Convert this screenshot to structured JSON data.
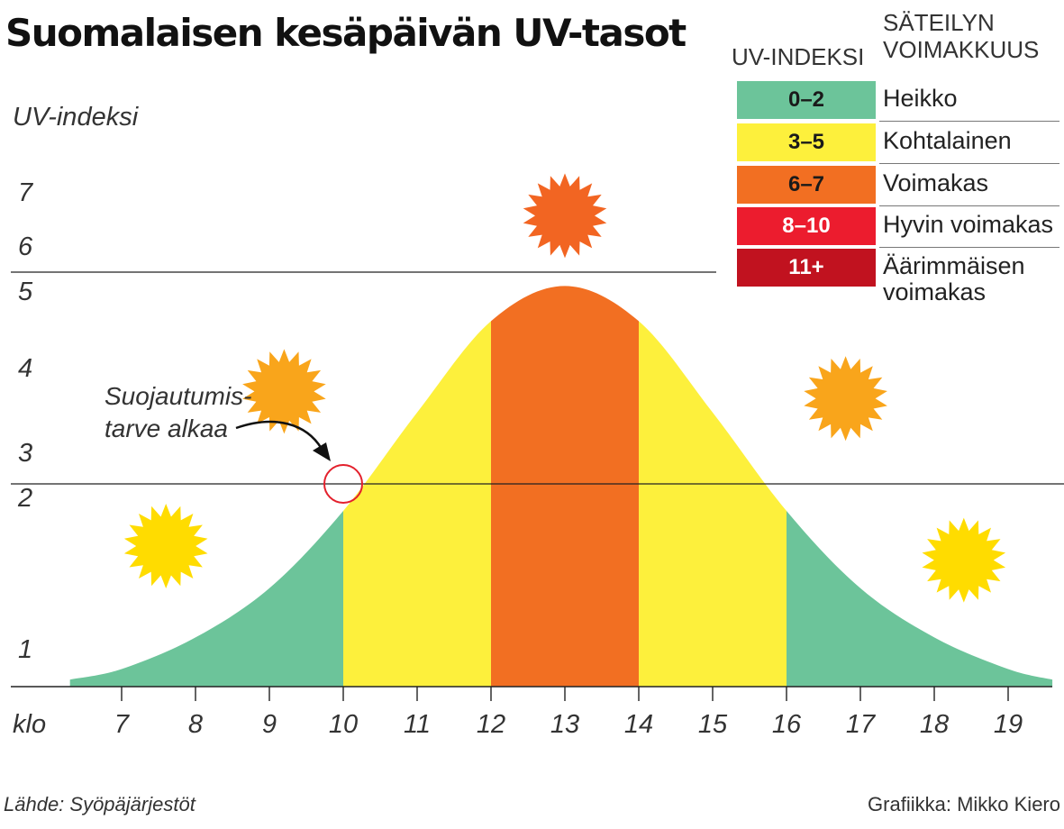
{
  "title": "Suomalaisen kesäpäivän UV-tasot",
  "chart_data": {
    "type": "area",
    "ylabel": "UV-indeksi",
    "xlabel": "klo",
    "x_ticks": [
      7,
      8,
      9,
      10,
      11,
      12,
      13,
      14,
      15,
      16,
      17,
      18,
      19
    ],
    "y_ticks": [
      1,
      2,
      3,
      4,
      5,
      6,
      7
    ],
    "xlim": [
      6.3,
      19.6
    ],
    "curve": {
      "x": [
        6.3,
        7,
        8,
        9,
        10,
        11,
        12,
        13,
        14,
        15,
        16,
        17,
        18,
        19,
        19.6
      ],
      "y": [
        0.6,
        0.75,
        1.2,
        1.9,
        3,
        4.4,
        5.7,
        6.2,
        5.7,
        4.4,
        3,
        1.9,
        1.2,
        0.75,
        0.6
      ]
    },
    "bands": [
      {
        "from": 6.3,
        "to": 10,
        "category": "0–2",
        "color": "#6cc49a"
      },
      {
        "from": 10,
        "to": 12,
        "category": "3–5",
        "color": "#fdf03c"
      },
      {
        "from": 12,
        "to": 14,
        "category": "6–7",
        "color": "#f26f22"
      },
      {
        "from": 14,
        "to": 16,
        "category": "3–5",
        "color": "#fdf03c"
      },
      {
        "from": 16,
        "to": 19.6,
        "category": "0–2",
        "color": "#6cc49a"
      }
    ],
    "reference_lines": [
      3,
      6
    ],
    "annotation": {
      "lines": [
        "Suojautumis-",
        "tarve alkaa"
      ],
      "x": 10,
      "y": 3
    },
    "suns": [
      {
        "x": 7.6,
        "y": 2.5,
        "color": "#ffdc00"
      },
      {
        "x": 9.2,
        "y": 4.7,
        "color": "#f9a51b"
      },
      {
        "x": 13,
        "y": 7.2,
        "color": "#f26522"
      },
      {
        "x": 16.8,
        "y": 4.6,
        "color": "#f9a51b"
      },
      {
        "x": 18.4,
        "y": 2.3,
        "color": "#ffdc00"
      }
    ]
  },
  "legend": {
    "col1_header": "UV-INDEKSI",
    "col2_header": [
      "SÄTEILYN",
      "VOIMAKKUUS"
    ],
    "items": [
      {
        "range": "0–2",
        "label": [
          "Heikko"
        ],
        "color": "#6cc49a",
        "text_color": "#1a1a1a"
      },
      {
        "range": "3–5",
        "label": [
          "Kohtalainen"
        ],
        "color": "#fdf03c",
        "text_color": "#1a1a1a"
      },
      {
        "range": "6–7",
        "label": [
          "Voimakas"
        ],
        "color": "#f26f22",
        "text_color": "#1a1a1a"
      },
      {
        "range": "8–10",
        "label": [
          "Hyvin voimakas"
        ],
        "color": "#ec1c2e",
        "text_color": "#ffffff"
      },
      {
        "range": "11+",
        "label": [
          "Äärimmäisen",
          "voimakas"
        ],
        "color": "#c1121f",
        "text_color": "#ffffff"
      }
    ]
  },
  "footer": {
    "source": "Lähde: Syöpäjärjestöt",
    "credit": "Grafiikka: Mikko Kiero"
  }
}
